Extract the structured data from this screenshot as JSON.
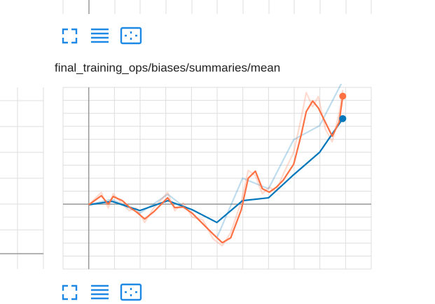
{
  "chart_data": {
    "type": "line",
    "title": "final_training_ops/biases/summaries/mean",
    "xlim": [
      -1,
      11
    ],
    "ylim": [
      -5,
      9
    ],
    "xticks": [
      -1,
      0,
      1,
      2,
      3,
      4,
      5,
      6,
      7,
      8,
      9,
      10,
      11
    ],
    "yticks": [
      -5,
      -4,
      -3,
      -2,
      -1,
      0,
      1,
      2,
      3,
      4,
      5,
      6,
      7,
      8,
      9
    ],
    "grid": true,
    "series": [
      {
        "color": "#0077bb",
        "opacity": 0.25,
        "end_marker": false,
        "x": [
          0,
          0.9,
          1.99,
          3.08,
          4.03,
          4.99,
          5.99,
          7.0,
          7.98,
          8.99,
          9.89
        ],
        "values": [
          -0.05,
          0.38,
          -0.7,
          0.76,
          -0.7,
          -2.59,
          2,
          1.19,
          4.97,
          6.05,
          9.5
        ]
      },
      {
        "color": "#ff7043",
        "opacity": 0.25,
        "end_marker": false,
        "x": [
          0,
          0.49,
          0.76,
          0.95,
          1.31,
          1.58,
          1.85,
          2.18,
          2.53,
          3.07,
          3.35,
          3.68,
          4.03,
          4.44,
          4.85,
          5.2,
          5.53,
          5.94,
          6.21,
          6.49,
          6.76,
          7.03,
          7.3,
          7.57,
          7.98,
          8.26,
          8.47,
          8.72,
          8.94,
          9.21,
          9.48,
          9.75,
          9.89
        ],
        "values": [
          -0.05,
          0.9,
          -0.3,
          0.8,
          0,
          -0.5,
          -0.3,
          -1.4,
          -0.3,
          0.9,
          -0.5,
          0.1,
          -1,
          -1.2,
          -2.7,
          -3.2,
          -2.2,
          0.2,
          2.6,
          2.2,
          0.8,
          1.3,
          1,
          2.3,
          4,
          6.5,
          8.6,
          7.5,
          8.3,
          5.8,
          4.8,
          7,
          8.8
        ]
      },
      {
        "color": "#0077bb",
        "opacity": 1,
        "end_marker": true,
        "x": [
          0,
          0.9,
          1.99,
          3.08,
          4.03,
          4.99,
          5.99,
          7.0,
          7.98,
          8.99,
          9.89
        ],
        "values": [
          -0.05,
          0.22,
          -0.49,
          0.27,
          -0.43,
          -1.41,
          0.27,
          0.49,
          2.27,
          4,
          6.59
        ]
      },
      {
        "color": "#ff7043",
        "opacity": 1,
        "end_marker": true,
        "x": [
          0,
          0.49,
          0.76,
          0.95,
          1.31,
          1.58,
          1.85,
          2.18,
          2.53,
          3.07,
          3.35,
          3.68,
          4.03,
          4.44,
          4.85,
          5.2,
          5.53,
          5.94,
          6.21,
          6.49,
          6.76,
          7.03,
          7.3,
          7.57,
          7.98,
          8.26,
          8.47,
          8.72,
          8.94,
          9.21,
          9.48,
          9.75,
          9.89
        ],
        "values": [
          -0.05,
          0.65,
          0,
          0.59,
          0.27,
          -0.22,
          -0.59,
          -1.14,
          -0.59,
          0.49,
          -0.27,
          -0.22,
          -0.7,
          -1.51,
          -2.32,
          -2.97,
          -2.59,
          -0.43,
          2,
          2.54,
          1.19,
          0.92,
          1.3,
          1.84,
          3.08,
          5.24,
          7.14,
          7.95,
          7.41,
          6.32,
          5.24,
          6.32,
          8.32
        ]
      }
    ]
  }
}
